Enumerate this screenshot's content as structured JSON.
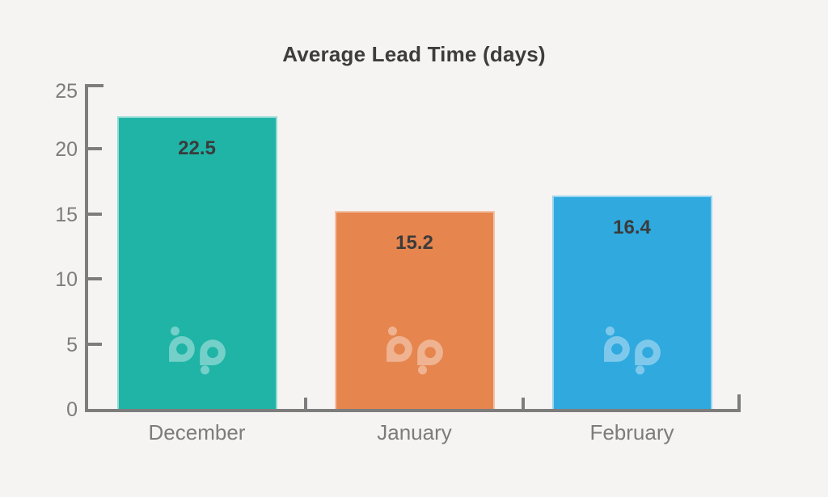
{
  "title": "Average Lead Time (days)",
  "chart_data": {
    "type": "bar",
    "title": "Average Lead Time (days)",
    "categories": [
      "December",
      "January",
      "February"
    ],
    "values": [
      22.5,
      15.2,
      16.4
    ],
    "value_labels": [
      "22.5",
      "15.2",
      "16.4"
    ],
    "bar_colors": [
      "#1fb4a6",
      "#e6854e",
      "#30a9df"
    ],
    "xlabel": "",
    "ylabel": "",
    "ylim": [
      0,
      25
    ],
    "yticks": [
      0,
      5,
      10,
      15,
      20,
      25
    ],
    "grid": false,
    "legend": false,
    "watermark_icon": "bp-logo",
    "layout_hint": "vertical bars, value labels inside bar tops, watermark logo near bar bottoms, y ticks point into plot"
  },
  "colors": {
    "background": "#f5f4f2",
    "axis": "#7d7d7d",
    "tick_label": "#7c7c7c",
    "title_text": "#3d3d3d",
    "value_label": "#3b3b3b",
    "watermark_fill": "rgba(255,255,255,0.38)"
  }
}
